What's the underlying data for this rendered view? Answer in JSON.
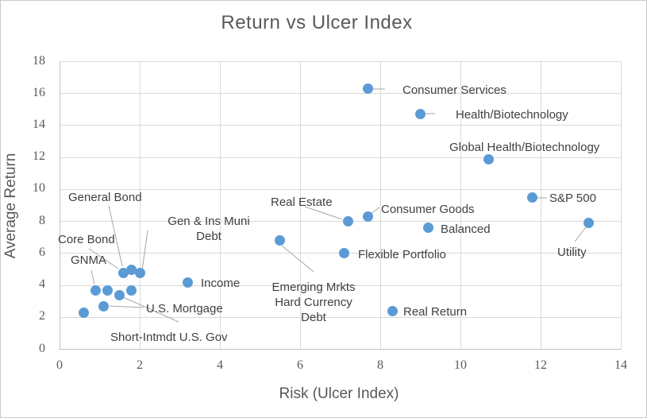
{
  "chart_data": {
    "type": "scatter",
    "title": "Return vs Ulcer Index",
    "xlabel": "Risk (Ulcer Index)",
    "ylabel": "Average Return",
    "xlim": [
      0,
      14
    ],
    "ylim": [
      0,
      18
    ],
    "x_ticks": [
      0,
      2,
      4,
      6,
      8,
      10,
      12,
      14
    ],
    "y_ticks": [
      0,
      2,
      4,
      6,
      8,
      10,
      12,
      14,
      16,
      18
    ],
    "grid": true,
    "legend": "none",
    "marker_color": "#5b9bd5",
    "gridline_color": "#d9d9d9",
    "label_color": "#404040",
    "axis_text_color": "#595959",
    "points": [
      {
        "x": 0.6,
        "y": 2.3,
        "label": ""
      },
      {
        "x": 0.9,
        "y": 3.7,
        "label": "GNMA"
      },
      {
        "x": 1.1,
        "y": 2.7,
        "label": "U.S. Mortgage"
      },
      {
        "x": 1.2,
        "y": 3.7,
        "label": ""
      },
      {
        "x": 1.5,
        "y": 3.4,
        "label": "Short-Intmdt U.S. Gov"
      },
      {
        "x": 1.6,
        "y": 4.8,
        "label": "General Bond"
      },
      {
        "x": 1.8,
        "y": 3.7,
        "label": ""
      },
      {
        "x": 1.8,
        "y": 5.0,
        "label": "Core Bond"
      },
      {
        "x": 2.0,
        "y": 4.8,
        "label": "Gen & Ins Muni Debt"
      },
      {
        "x": 3.2,
        "y": 4.2,
        "label": "Income"
      },
      {
        "x": 5.5,
        "y": 6.8,
        "label": "Emerging Mrkts Hard Currency Debt"
      },
      {
        "x": 7.1,
        "y": 6.0,
        "label": "Flexible Portfolio"
      },
      {
        "x": 7.2,
        "y": 8.0,
        "label": "Real Estate"
      },
      {
        "x": 7.7,
        "y": 8.3,
        "label": "Consumer Goods"
      },
      {
        "x": 7.7,
        "y": 16.3,
        "label": "Consumer Services"
      },
      {
        "x": 8.3,
        "y": 2.4,
        "label": "Real Return"
      },
      {
        "x": 9.0,
        "y": 14.7,
        "label": "Health/Biotechnology"
      },
      {
        "x": 9.2,
        "y": 7.6,
        "label": "Balanced"
      },
      {
        "x": 10.7,
        "y": 11.9,
        "label": "Global Health/Biotechnology"
      },
      {
        "x": 11.8,
        "y": 9.5,
        "label": "S&P 500"
      },
      {
        "x": 13.2,
        "y": 7.9,
        "label": "Utility"
      }
    ]
  }
}
